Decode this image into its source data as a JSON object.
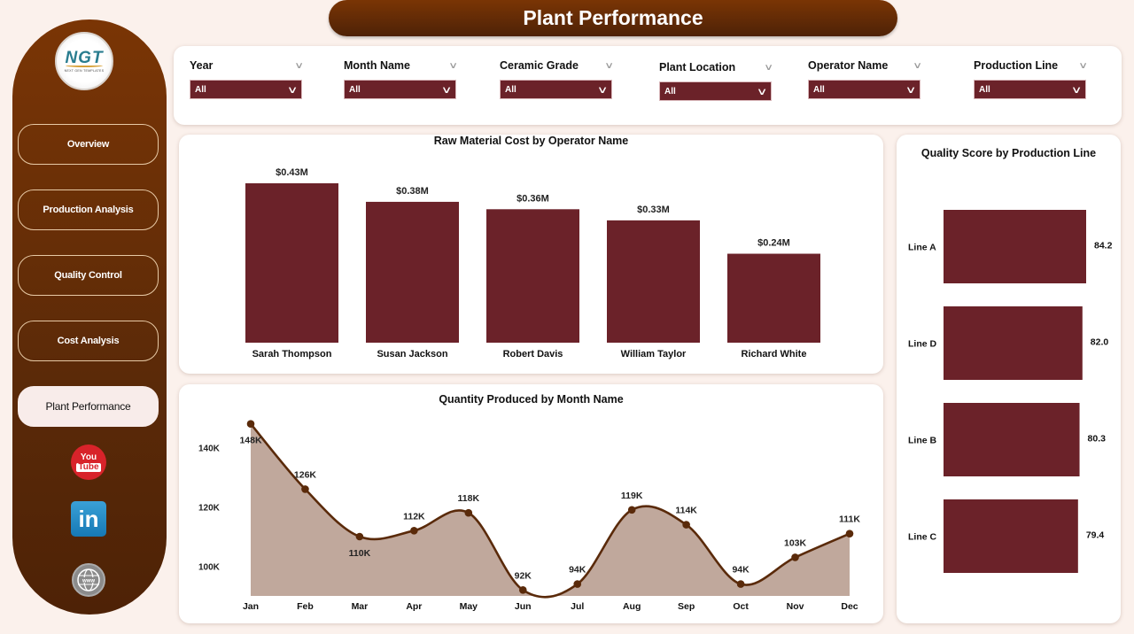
{
  "header": {
    "title": "Plant Performance"
  },
  "logo": {
    "text": "NGT",
    "tagline": "NEXT GEN TEMPLATES"
  },
  "sidebar": {
    "items": [
      {
        "label": "Overview",
        "active": false
      },
      {
        "label": "Production Analysis",
        "active": false
      },
      {
        "label": "Quality Control",
        "active": false
      },
      {
        "label": "Cost Analysis",
        "active": false
      },
      {
        "label": "Plant Performance",
        "active": true
      }
    ],
    "social": [
      {
        "name": "youtube-icon",
        "label_top": "You",
        "label_bottom": "Tube"
      },
      {
        "name": "linkedin-icon",
        "label": "in"
      },
      {
        "name": "website-icon",
        "label": "www"
      }
    ]
  },
  "filters": [
    {
      "label": "Year",
      "value": "All"
    },
    {
      "label": "Month Name",
      "value": "All"
    },
    {
      "label": "Ceramic Grade",
      "value": "All"
    },
    {
      "label": "Plant Location",
      "value": "All"
    },
    {
      "label": "Operator Name",
      "value": "All"
    },
    {
      "label": "Production Line",
      "value": "All"
    }
  ],
  "colors": {
    "brand_dark": "#5b2a08",
    "bar": "#6b2229",
    "line": "#5a2a0a",
    "area": "#c0a89c",
    "background": "#fbf1ec"
  },
  "chart_data": [
    {
      "type": "bar",
      "title": "Raw Material Cost by Operator Name",
      "categories": [
        "Sarah Thompson",
        "Susan Jackson",
        "Robert Davis",
        "William Taylor",
        "Richard White"
      ],
      "values": [
        0.43,
        0.38,
        0.36,
        0.33,
        0.24
      ],
      "labels": [
        "$0.43M",
        "$0.38M",
        "$0.36M",
        "$0.33M",
        "$0.24M"
      ],
      "unit": "$M",
      "ylim": [
        0,
        0.5
      ],
      "grid": false
    },
    {
      "type": "bar",
      "orientation": "horizontal",
      "title": "Quality Score by Production Line",
      "categories": [
        "Line A",
        "Line D",
        "Line B",
        "Line C"
      ],
      "values": [
        84.2,
        82.0,
        80.3,
        79.4
      ],
      "labels": [
        "84.2",
        "82.0",
        "80.3",
        "79.4"
      ],
      "xlim": [
        0,
        90
      ],
      "grid": false
    },
    {
      "type": "area",
      "title": "Quantity Produced by Month Name",
      "categories": [
        "Jan",
        "Feb",
        "Mar",
        "Apr",
        "May",
        "Jun",
        "Jul",
        "Aug",
        "Sep",
        "Oct",
        "Nov",
        "Dec"
      ],
      "values": [
        148,
        126,
        110,
        112,
        118,
        92,
        94,
        119,
        114,
        94,
        103,
        111
      ],
      "labels": [
        "148K",
        "126K",
        "110K",
        "112K",
        "118K",
        "92K",
        "94K",
        "119K",
        "114K",
        "94K",
        "103K",
        "111K"
      ],
      "label_below": [
        true,
        false,
        true,
        false,
        false,
        false,
        false,
        false,
        false,
        false,
        false,
        false
      ],
      "unit": "K",
      "yticks": [
        "100K",
        "120K",
        "140K"
      ],
      "ytick_values": [
        100,
        120,
        140
      ],
      "ylim": [
        90,
        150
      ],
      "grid": false
    }
  ]
}
